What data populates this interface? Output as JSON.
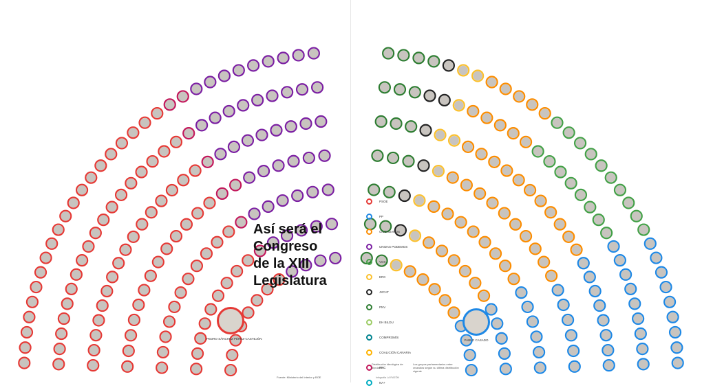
{
  "headline": [
    "Así será el",
    "Congreso",
    "de la XIII",
    "Legislatura"
  ],
  "leaders": {
    "left": "PEDRO SÁNCHEZ PÉREZ-CASTEJÓN",
    "right": "PABLO CASADO"
  },
  "colors": {
    "psoe": "#e53935",
    "pp": "#1e88e5",
    "cs": "#fb8c00",
    "up": "#7b1fa2",
    "vox": "#43a047",
    "erc": "#fbc02d",
    "jxcat": "#222222",
    "pnv": "#2e7d32",
    "ehbildu": "#9ccc65",
    "comp": "#00838f",
    "cc": "#ffb300",
    "prc": "#c2185b",
    "nasuma": "#00acc1",
    "neutral": "#c8c4bf"
  },
  "legend": [
    {
      "label": "PSOE",
      "color": "#e53935"
    },
    {
      "label": "PP",
      "color": "#1e88e5"
    },
    {
      "label": "CIUDADANOS",
      "color": "#fb8c00"
    },
    {
      "label": "UNIDAS PODEMOS",
      "color": "#7b1fa2"
    },
    {
      "label": "VOX",
      "color": "#43a047"
    },
    {
      "label": "ERC",
      "color": "#fbc02d"
    },
    {
      "label": "JXCAT",
      "color": "#222222"
    },
    {
      "label": "PNV",
      "color": "#2e7d32"
    },
    {
      "label": "EH BILDU",
      "color": "#9ccc65"
    },
    {
      "label": "COMPROMÍS",
      "color": "#00838f"
    },
    {
      "label": "COALICIÓN CANARIA",
      "color": "#ffb300"
    },
    {
      "label": "PRC",
      "color": "#c2185b"
    },
    {
      "label": "NA+",
      "color": "#00acc1"
    }
  ],
  "source": "Fuente: Ministerio del Interior y BOE",
  "note_left": "Distribución ideológica de diputados",
  "note_right": "Los grupos parlamentarios entre cruzados según su última distribución vigente",
  "credit": "Infografía LA RAZÓN"
}
